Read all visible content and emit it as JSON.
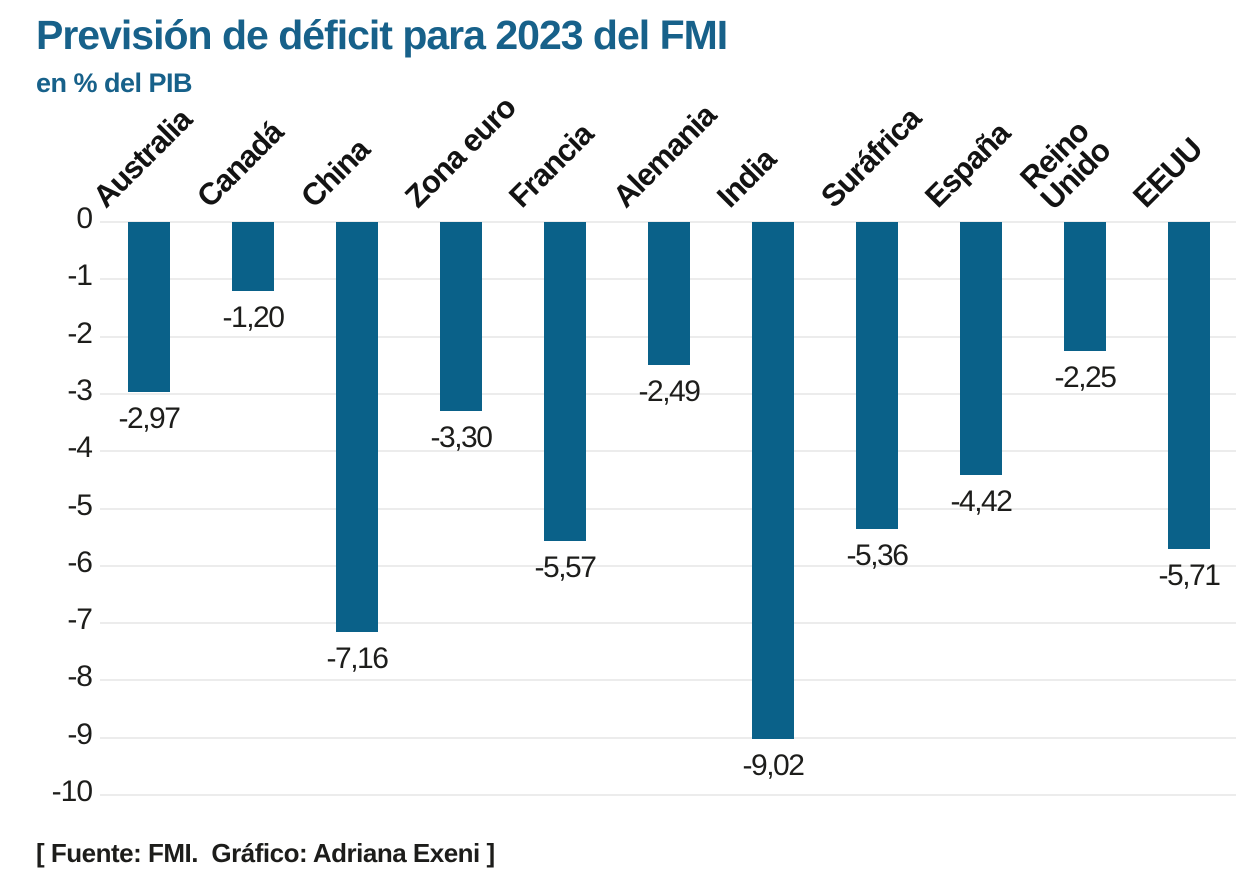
{
  "title": "Previsión de déficit para 2023 del FMI",
  "subtitle": "en % del PIB",
  "footer": "[ Fuente: FMI.  Gráfico: Adriana Exeni ]",
  "colors": {
    "title": "#17618a",
    "bar": "#0a6189",
    "grid": "#ececec",
    "text": "#1d1d1b"
  },
  "chart_data": {
    "type": "bar",
    "title": "Previsión de déficit para 2023 del FMI",
    "subtitle": "en % del PIB",
    "xlabel": "",
    "ylabel": "en % del PIB",
    "categories": [
      "Australia",
      "Canadá",
      "China",
      "Zona euro",
      "Francia",
      "Alemania",
      "India",
      "Suráfrica",
      "España",
      "Reino\nUnido",
      "EEUU"
    ],
    "values": [
      -2.97,
      -1.2,
      -7.16,
      -3.3,
      -5.57,
      -2.49,
      -9.02,
      -5.36,
      -4.42,
      -2.25,
      -5.71
    ],
    "value_labels": [
      "-2,97",
      "-1,20",
      "-7,16",
      "-3,30",
      "-5,57",
      "-2,49",
      "-9,02",
      "-5,36",
      "-4,42",
      "-2,25",
      "-5,71"
    ],
    "y_tick_labels": [
      "0",
      "-1",
      "-2",
      "-3",
      "-4",
      "-5",
      "-6",
      "-7",
      "-8",
      "-9",
      "-10"
    ],
    "ylim": [
      -10,
      0
    ],
    "grid": true,
    "legend": null,
    "bar_color": "#0a6189",
    "source": "FMI",
    "credit": "Adriana Exeni"
  }
}
